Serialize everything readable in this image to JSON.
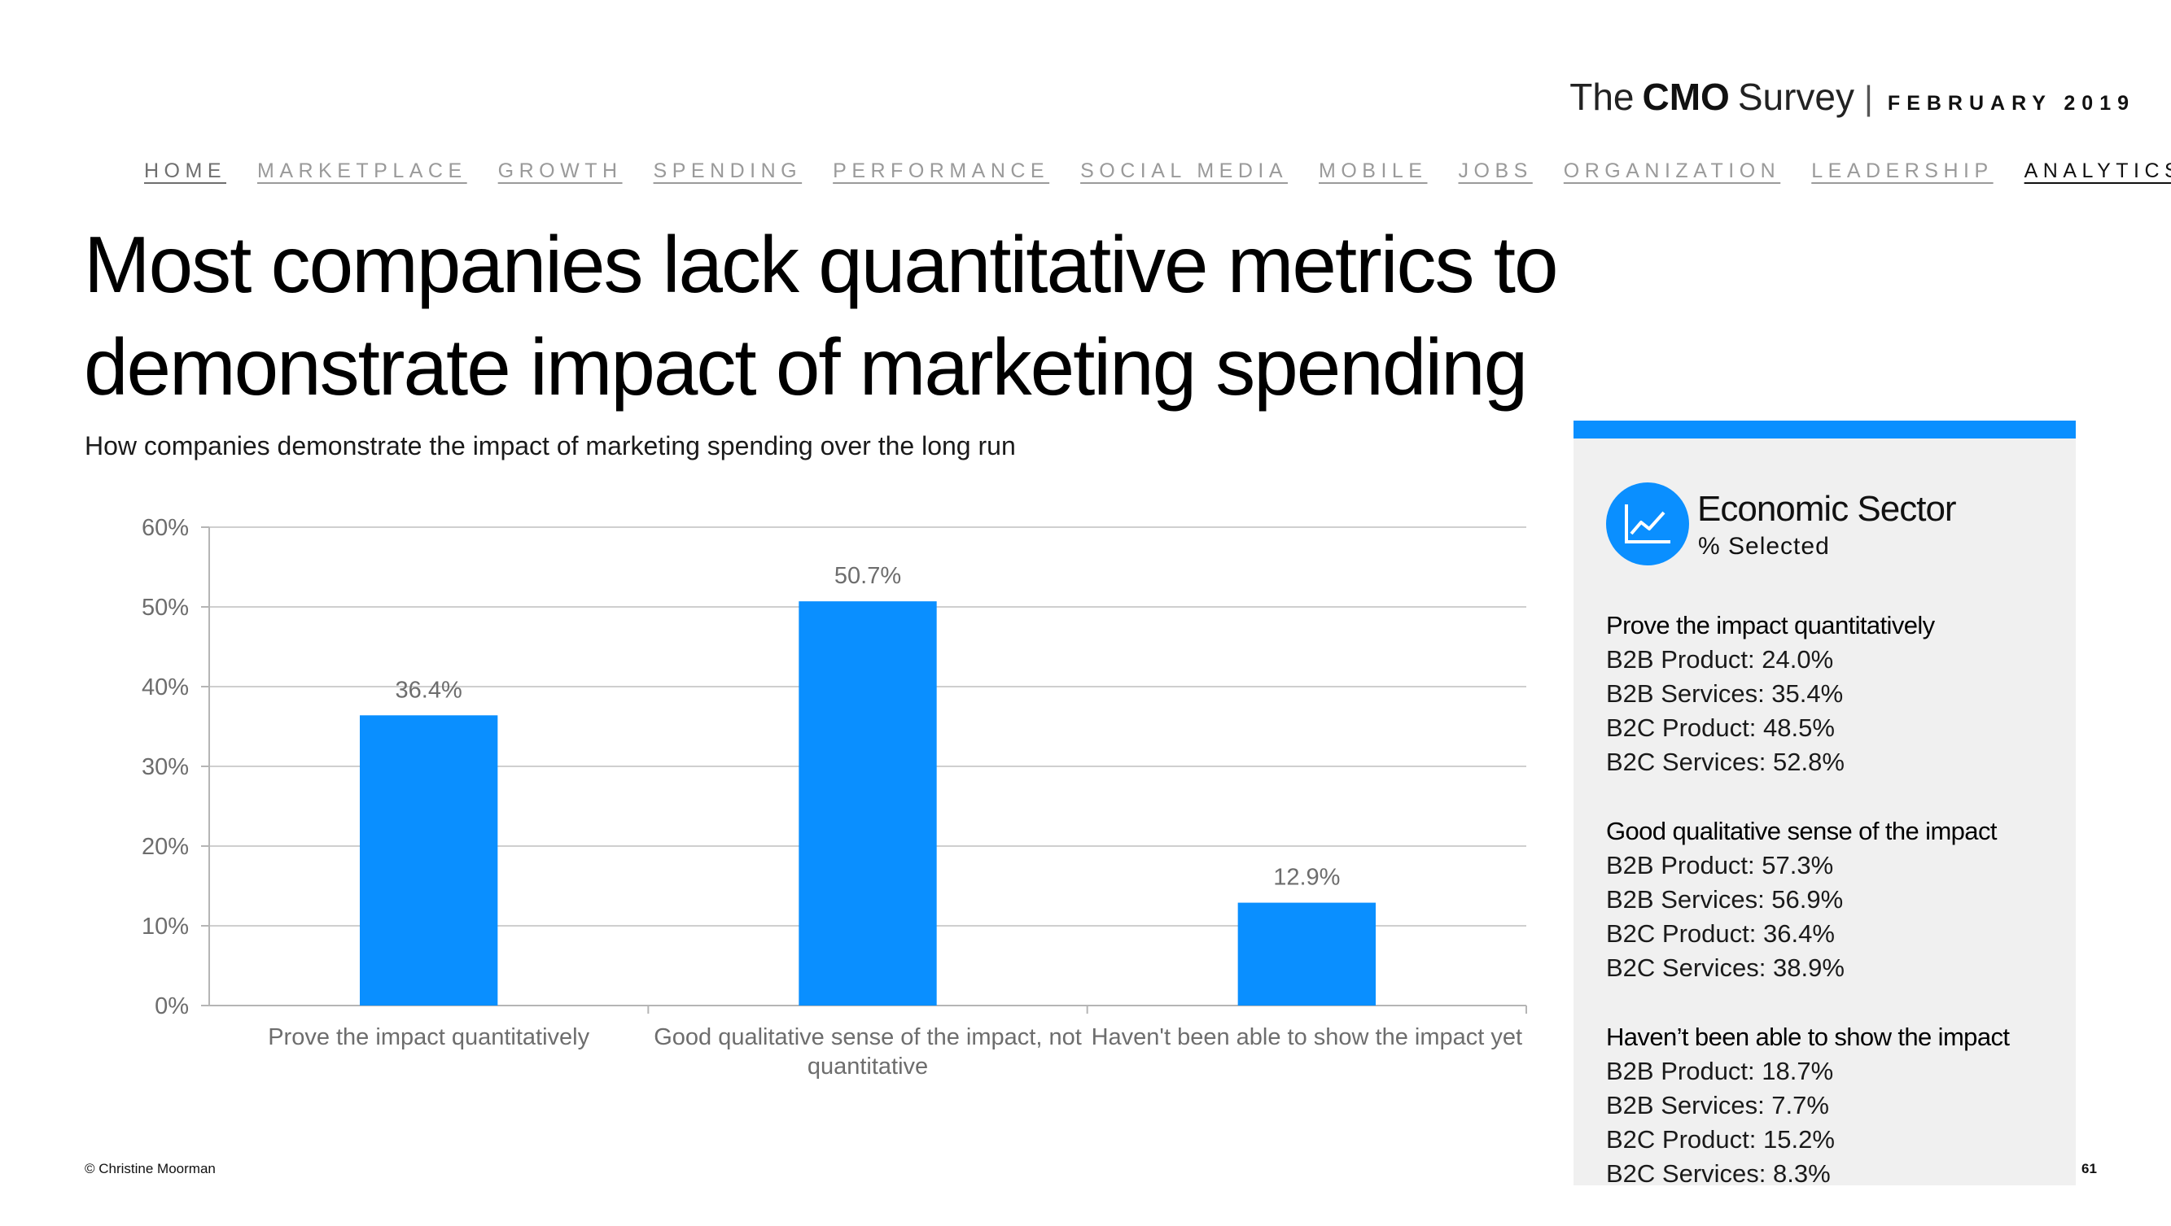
{
  "brand": {
    "the": "The",
    "cmo": "CMO",
    "survey": "Survey",
    "separator": "|",
    "date": "FEBRUARY 2019"
  },
  "nav": [
    {
      "label": "HOME"
    },
    {
      "label": "MARKETPLACE"
    },
    {
      "label": "GROWTH"
    },
    {
      "label": "SPENDING"
    },
    {
      "label": "PERFORMANCE"
    },
    {
      "label": "SOCIAL MEDIA"
    },
    {
      "label": "MOBILE"
    },
    {
      "label": "JOBS"
    },
    {
      "label": "ORGANIZATION"
    },
    {
      "label": "LEADERSHIP"
    },
    {
      "label": "ANALYTICS"
    }
  ],
  "title": {
    "line1": "Most companies lack quantitative metrics to",
    "line2": "demonstrate impact of marketing spending"
  },
  "subtitle": "How companies demonstrate the impact of marketing spending over the long run",
  "chart_data": {
    "type": "bar",
    "title": "How companies demonstrate the impact of marketing spending over the long run",
    "categories": [
      "Prove the impact quantitatively",
      "Good qualitative sense of the impact, not quantitative",
      "Haven't been able to show the impact yet"
    ],
    "category_lines": [
      [
        "Prove the impact quantitatively"
      ],
      [
        "Good qualitative sense of the impact, not",
        "quantitative"
      ],
      [
        "Haven't been able to show the impact yet"
      ]
    ],
    "values": [
      36.4,
      50.7,
      12.9
    ],
    "data_labels": [
      "36.4%",
      "50.7%",
      "12.9%"
    ],
    "yticks": [
      0,
      10,
      20,
      30,
      40,
      50,
      60
    ],
    "ytick_labels": [
      "0%",
      "10%",
      "20%",
      "30%",
      "40%",
      "50%",
      "60%"
    ],
    "ylim": [
      0,
      60
    ],
    "xlabel": "",
    "ylabel": "",
    "grid": true,
    "bar_color": "#0a8fff"
  },
  "panel": {
    "title": "Economic Sector",
    "subtitle": "% Selected",
    "accent_color": "#0a8fff",
    "groups": [
      {
        "heading": "Prove the impact quantitatively",
        "items": [
          "B2B Product: 24.0%",
          "B2B Services: 35.4%",
          "B2C Product: 48.5%",
          "B2C Services: 52.8%"
        ]
      },
      {
        "heading": "Good qualitative sense of the impact",
        "items": [
          "B2B Product: 57.3%",
          "B2B Services: 56.9%",
          "B2C Product: 36.4%",
          "B2C Services: 38.9%"
        ]
      },
      {
        "heading": "Haven’t been able to show the impact",
        "items": [
          "B2B Product: 18.7%",
          "B2B Services: 7.7%",
          "B2C Product: 15.2%",
          "B2C Services: 8.3%"
        ]
      }
    ]
  },
  "footer": {
    "copyright": "© Christine Moorman",
    "page_number": "61"
  }
}
